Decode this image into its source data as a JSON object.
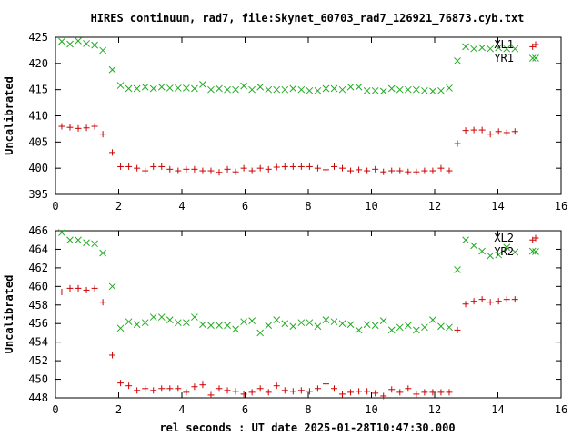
{
  "title": "HIRES continuum, rad7, file:Skynet_60703_rad7_126921_76873.cyb.txt",
  "xlabel": "rel seconds : UT date 2025-01-28T10:47:30.000",
  "colors": {
    "red": "#cc0000",
    "green": "#22aa22",
    "axis": "#000000"
  },
  "chart_data": [
    {
      "type": "scatter",
      "ylabel": "Uncalibrated",
      "xlim": [
        0,
        16
      ],
      "ylim": [
        395,
        425
      ],
      "xticks": [
        0,
        2,
        4,
        6,
        8,
        10,
        12,
        14,
        16
      ],
      "yticks": [
        395,
        400,
        405,
        410,
        415,
        420,
        425
      ],
      "legend_position": "top-right",
      "series": [
        {
          "name": "XL1",
          "marker": "plus",
          "color": "#cc0000",
          "x": [
            0.2,
            0.46,
            0.72,
            0.98,
            1.24,
            1.5,
            1.8,
            2.06,
            2.32,
            2.58,
            2.84,
            3.1,
            3.36,
            3.62,
            3.88,
            4.14,
            4.4,
            4.66,
            4.92,
            5.18,
            5.44,
            5.7,
            5.96,
            6.22,
            6.48,
            6.74,
            7.0,
            7.26,
            7.52,
            7.78,
            8.04,
            8.3,
            8.56,
            8.82,
            9.08,
            9.34,
            9.6,
            9.86,
            10.12,
            10.38,
            10.64,
            10.9,
            11.16,
            11.42,
            11.68,
            11.94,
            12.2,
            12.46,
            12.72,
            12.98,
            13.24,
            13.5,
            13.76,
            14.02,
            14.28,
            14.54,
            15.1
          ],
          "y": [
            408.0,
            407.8,
            407.6,
            407.7,
            408.0,
            406.5,
            403.0,
            400.3,
            400.3,
            400.0,
            399.5,
            400.3,
            400.3,
            399.8,
            399.5,
            399.8,
            399.8,
            399.5,
            399.5,
            399.2,
            399.8,
            399.3,
            400.0,
            399.5,
            400.0,
            399.8,
            400.2,
            400.3,
            400.3,
            400.3,
            400.3,
            400.0,
            399.7,
            400.3,
            400.0,
            399.5,
            399.7,
            399.5,
            399.8,
            399.3,
            399.5,
            399.5,
            399.3,
            399.3,
            399.5,
            399.5,
            400.0,
            399.5,
            404.7,
            407.2,
            407.3,
            407.3,
            406.5,
            407.0,
            406.8,
            407.0,
            423.2
          ]
        },
        {
          "name": "YR1",
          "marker": "cross",
          "color": "#22aa22",
          "x": [
            0.2,
            0.46,
            0.72,
            0.98,
            1.24,
            1.5,
            1.8,
            2.06,
            2.32,
            2.58,
            2.84,
            3.1,
            3.36,
            3.62,
            3.88,
            4.14,
            4.4,
            4.66,
            4.92,
            5.18,
            5.44,
            5.7,
            5.96,
            6.22,
            6.48,
            6.74,
            7.0,
            7.26,
            7.52,
            7.78,
            8.04,
            8.3,
            8.56,
            8.82,
            9.08,
            9.34,
            9.6,
            9.86,
            10.12,
            10.38,
            10.64,
            10.9,
            11.16,
            11.42,
            11.68,
            11.94,
            12.2,
            12.46,
            12.72,
            12.98,
            13.24,
            13.5,
            13.76,
            14.02,
            14.28,
            14.54,
            15.1
          ],
          "y": [
            424.2,
            423.7,
            424.3,
            423.8,
            423.5,
            422.5,
            418.8,
            415.8,
            415.2,
            415.2,
            415.5,
            415.2,
            415.5,
            415.3,
            415.3,
            415.3,
            415.2,
            416.0,
            415.0,
            415.2,
            415.0,
            415.0,
            415.7,
            415.0,
            415.5,
            415.0,
            415.0,
            415.0,
            415.2,
            415.0,
            414.8,
            414.8,
            415.2,
            415.2,
            415.0,
            415.5,
            415.5,
            414.8,
            414.8,
            414.7,
            415.2,
            415.0,
            415.0,
            415.0,
            414.8,
            414.7,
            414.8,
            415.3,
            420.5,
            423.2,
            422.8,
            423.0,
            422.8,
            423.0,
            422.8,
            422.8,
            421.0
          ]
        }
      ]
    },
    {
      "type": "scatter",
      "ylabel": "Uncalibrated",
      "xlim": [
        0,
        16
      ],
      "ylim": [
        448,
        466
      ],
      "xticks": [
        0,
        2,
        4,
        6,
        8,
        10,
        12,
        14,
        16
      ],
      "yticks": [
        448,
        450,
        452,
        454,
        456,
        458,
        460,
        462,
        464,
        466
      ],
      "legend_position": "top-right",
      "series": [
        {
          "name": "XL2",
          "marker": "plus",
          "color": "#cc0000",
          "x": [
            0.2,
            0.46,
            0.72,
            0.98,
            1.24,
            1.5,
            1.8,
            2.06,
            2.32,
            2.58,
            2.84,
            3.1,
            3.36,
            3.62,
            3.88,
            4.14,
            4.4,
            4.66,
            4.92,
            5.18,
            5.44,
            5.7,
            5.96,
            6.22,
            6.48,
            6.74,
            7.0,
            7.26,
            7.52,
            7.78,
            8.04,
            8.3,
            8.56,
            8.82,
            9.08,
            9.34,
            9.6,
            9.86,
            10.12,
            10.38,
            10.64,
            10.9,
            11.16,
            11.42,
            11.68,
            11.94,
            12.2,
            12.46,
            12.72,
            12.98,
            13.24,
            13.5,
            13.76,
            14.02,
            14.28,
            14.54,
            15.1
          ],
          "y": [
            459.4,
            459.8,
            459.8,
            459.6,
            459.8,
            458.3,
            452.6,
            449.6,
            449.3,
            448.8,
            449.0,
            448.8,
            449.0,
            449.0,
            449.0,
            448.6,
            449.2,
            449.4,
            448.3,
            449.0,
            448.8,
            448.7,
            448.4,
            448.6,
            449.0,
            448.6,
            449.3,
            448.8,
            448.7,
            448.8,
            448.7,
            449.0,
            449.5,
            449.0,
            448.4,
            448.6,
            448.7,
            448.7,
            448.5,
            448.2,
            448.9,
            448.6,
            449.0,
            448.4,
            448.6,
            448.6,
            448.6,
            448.6,
            455.3,
            458.1,
            458.4,
            458.6,
            458.3,
            458.4,
            458.6,
            458.6,
            465.0
          ]
        },
        {
          "name": "YR2",
          "marker": "cross",
          "color": "#22aa22",
          "x": [
            0.2,
            0.46,
            0.72,
            0.98,
            1.24,
            1.5,
            1.8,
            2.06,
            2.32,
            2.58,
            2.84,
            3.1,
            3.36,
            3.62,
            3.88,
            4.14,
            4.4,
            4.66,
            4.92,
            5.18,
            5.44,
            5.7,
            5.96,
            6.22,
            6.48,
            6.74,
            7.0,
            7.26,
            7.52,
            7.78,
            8.04,
            8.3,
            8.56,
            8.82,
            9.08,
            9.34,
            9.6,
            9.86,
            10.12,
            10.38,
            10.64,
            10.9,
            11.16,
            11.42,
            11.68,
            11.94,
            12.2,
            12.46,
            12.72,
            12.98,
            13.24,
            13.5,
            13.76,
            14.02,
            14.28,
            14.54,
            15.1
          ],
          "y": [
            465.8,
            465.0,
            465.0,
            464.7,
            464.6,
            463.6,
            460.0,
            455.5,
            456.2,
            455.9,
            456.1,
            456.7,
            456.7,
            456.4,
            456.1,
            456.1,
            456.7,
            455.9,
            455.8,
            455.8,
            455.8,
            455.4,
            456.2,
            456.3,
            455.0,
            455.8,
            456.4,
            456.0,
            455.7,
            456.1,
            456.1,
            455.7,
            456.4,
            456.2,
            456.0,
            455.9,
            455.3,
            455.9,
            455.8,
            456.3,
            455.3,
            455.6,
            455.8,
            455.3,
            455.6,
            456.4,
            455.7,
            455.6,
            461.8,
            465.0,
            464.4,
            463.8,
            463.3,
            463.4,
            464.2,
            463.7,
            463.8
          ]
        }
      ]
    }
  ]
}
